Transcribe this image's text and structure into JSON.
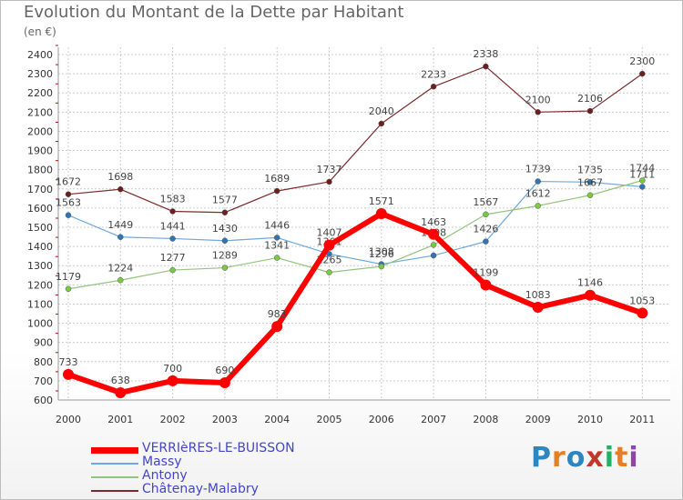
{
  "title": "Evolution du Montant de la Dette par Habitant",
  "unit": "(en €)",
  "logo": {
    "letters": [
      "P",
      "r",
      "o",
      "x",
      "i",
      "t",
      "i"
    ],
    "colors": [
      "#2e86c1",
      "#e67e22",
      "#2e86c1",
      "#c0392b",
      "#27ae60",
      "#e67e22",
      "#8e44ad"
    ]
  },
  "chart_data": {
    "type": "line",
    "title": "Evolution du Montant de la Dette par Habitant",
    "ylabel": "(en €)",
    "xlabel": "",
    "x": [
      "2000",
      "2001",
      "2002",
      "2003",
      "2004",
      "2005",
      "2006",
      "2007",
      "2008",
      "2009",
      "2010",
      "2011"
    ],
    "ylim": [
      600,
      2400
    ],
    "yticks": [
      600,
      700,
      800,
      900,
      1000,
      1100,
      1200,
      1300,
      1400,
      1500,
      1600,
      1700,
      1800,
      1900,
      2000,
      2100,
      2200,
      2300,
      2400
    ],
    "grid": true,
    "legend_position": "bottom-left",
    "series": [
      {
        "name": "Châtenay-Malabry",
        "color": "#7a2a2a",
        "point_color": "#6b1f1f",
        "width": 1.2,
        "marker": 3,
        "values": [
          1672,
          1698,
          1583,
          1577,
          1689,
          1737,
          2040,
          2233,
          2338,
          2100,
          2106,
          2300
        ],
        "labels": [
          "1672",
          "1698",
          "1583",
          "1577",
          "1689",
          "1737",
          "2040",
          "2233",
          "2338",
          "2100",
          "2106",
          "2300"
        ]
      },
      {
        "name": "Massy",
        "color": "#6fa8dc",
        "point_color": "#2f75b5",
        "width": 1.2,
        "marker": 3,
        "values": [
          1563,
          1449,
          1441,
          1430,
          1446,
          1361,
          1308,
          1353,
          1426,
          1739,
          1735,
          1711
        ],
        "labels": [
          "1563",
          "1449",
          "1441",
          "1430",
          "1446",
          "1361",
          "1308",
          "",
          "1426",
          "1739",
          "1735",
          "1711"
        ]
      },
      {
        "name": "Antony",
        "color": "#93c47d",
        "point_color": "#7ac943",
        "width": 1.2,
        "marker": 3,
        "values": [
          1179,
          1224,
          1277,
          1289,
          1341,
          1265,
          1296,
          1408,
          1567,
          1612,
          1667,
          1744
        ],
        "labels": [
          "1179",
          "1224",
          "1277",
          "1289",
          "1341",
          "1265",
          "1296",
          "1408",
          "1567",
          "1612",
          "1667",
          "1744"
        ]
      },
      {
        "name": "VERRIèRES-LE-BUISSON",
        "color": "#ff0000",
        "point_color": "#ff0000",
        "width": 6,
        "marker": 6,
        "values": [
          733,
          638,
          700,
          690,
          983,
          1407,
          1571,
          1463,
          1199,
          1083,
          1146,
          1053
        ],
        "labels": [
          "733",
          "638",
          "700",
          "690",
          "983",
          "1407",
          "1571",
          "1463",
          "1199",
          "1083",
          "1146",
          "1053"
        ]
      }
    ]
  },
  "legend": [
    {
      "label": "VERRIèRES-LE-BUISSON",
      "color": "#ff0000",
      "thickness": 7,
      "text_color": "#4444cc"
    },
    {
      "label": "Massy",
      "color": "#6fa8dc",
      "thickness": 2,
      "text_color": "#4444cc"
    },
    {
      "label": "Antony",
      "color": "#93c47d",
      "thickness": 2,
      "text_color": "#4444cc"
    },
    {
      "label": "Châtenay-Malabry",
      "color": "#7a2a2a",
      "thickness": 2,
      "text_color": "#4444cc"
    }
  ]
}
